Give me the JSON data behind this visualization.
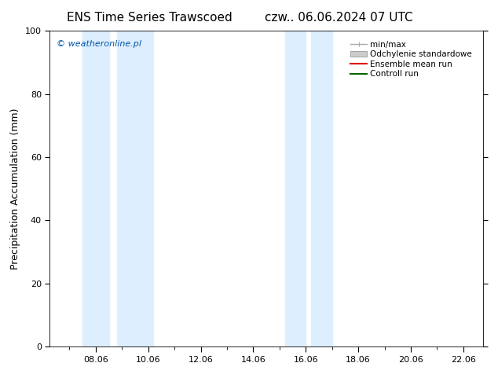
{
  "title_left": "ENS Time Series Trawscoed",
  "title_right": "czw.. 06.06.2024 07 UTC",
  "ylabel": "Precipitation Accumulation (mm)",
  "watermark": "© weatheronline.pl",
  "watermark_color": "#0055aa",
  "ylim": [
    0,
    100
  ],
  "xlim_start": 6.25,
  "xlim_end": 22.75,
  "xtick_labels": [
    "08.06",
    "10.06",
    "12.06",
    "14.06",
    "16.06",
    "18.06",
    "20.06",
    "22.06"
  ],
  "xtick_positions": [
    8.0,
    10.0,
    12.0,
    14.0,
    16.0,
    18.0,
    20.0,
    22.0
  ],
  "ytick_positions": [
    0,
    20,
    40,
    60,
    80,
    100
  ],
  "shaded_bands": [
    {
      "x_start": 7.5,
      "x_end": 8.5,
      "color": "#ddeeff",
      "alpha": 1.0
    },
    {
      "x_start": 8.8,
      "x_end": 10.2,
      "color": "#ddeeff",
      "alpha": 1.0
    },
    {
      "x_start": 15.2,
      "x_end": 16.0,
      "color": "#ddeeff",
      "alpha": 1.0
    },
    {
      "x_start": 16.2,
      "x_end": 17.0,
      "color": "#ddeeff",
      "alpha": 1.0
    }
  ],
  "legend_entries": [
    {
      "label": "min/max",
      "type": "line",
      "color": "#aaaaaa",
      "linewidth": 1.0
    },
    {
      "label": "Odchylenie standardowe",
      "type": "patch",
      "color": "#cccccc"
    },
    {
      "label": "Ensemble mean run",
      "type": "line",
      "color": "#dd0000",
      "linewidth": 1.5
    },
    {
      "label": "Controll run",
      "type": "line",
      "color": "#006600",
      "linewidth": 1.5
    }
  ],
  "bg_color": "#ffffff",
  "title_fontsize": 11,
  "label_fontsize": 9,
  "tick_fontsize": 8,
  "legend_fontsize": 7.5,
  "watermark_fontsize": 8
}
